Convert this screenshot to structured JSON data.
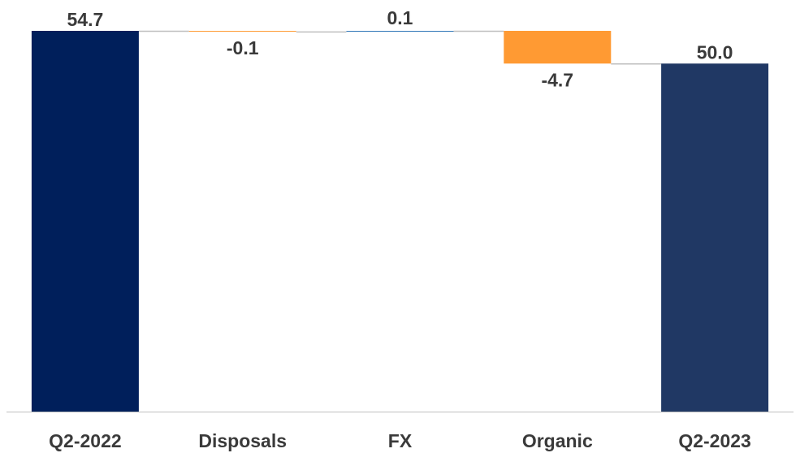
{
  "chart_data": {
    "type": "bar",
    "subtype": "waterfall",
    "categories": [
      "Q2-2022",
      "Disposals",
      "FX",
      "Organic",
      "Q2-2023"
    ],
    "values": [
      54.7,
      -0.1,
      0.1,
      -4.7,
      50.0
    ],
    "kinds": [
      "total",
      "delta",
      "delta",
      "delta",
      "total"
    ],
    "value_labels": [
      "54.7",
      "-0.1",
      "0.1",
      "-4.7",
      "50.0"
    ],
    "ylim": [
      0,
      54.7
    ],
    "grid": false,
    "legend": "none",
    "colors": {
      "start_total": "#001f5b",
      "end_total": "#203864",
      "increase": "#2e75b6",
      "decrease": "#ff9a33",
      "connector": "#bfbfbf",
      "axis": "#bfbfbf"
    }
  }
}
